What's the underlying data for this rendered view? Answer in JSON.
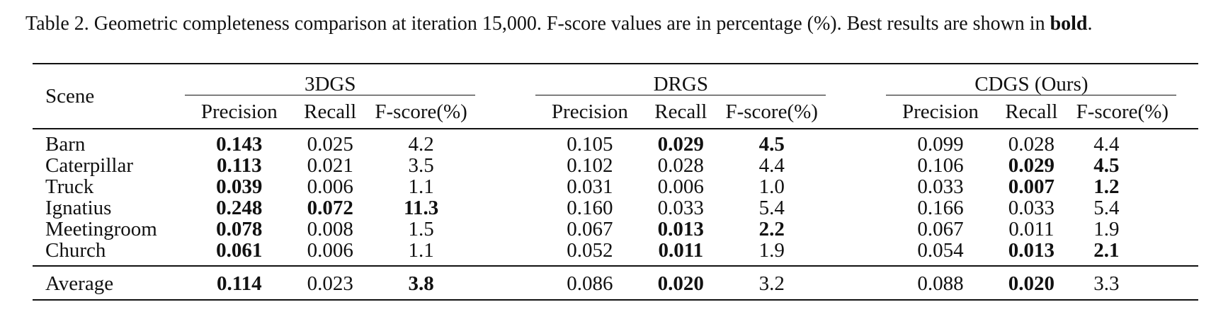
{
  "caption": {
    "prefix": "Table 2. Geometric completeness comparison at iteration 15,000. F-score values are in percentage (%). Best results are shown in ",
    "bold_word": "bold",
    "suffix": "."
  },
  "header": {
    "scene": "Scene",
    "groups": [
      "3DGS",
      "DRGS",
      "CDGS (Ours)"
    ],
    "subcols": [
      "Precision",
      "Recall",
      "F-score(%)"
    ]
  },
  "rows": [
    {
      "scene": "Barn",
      "v": [
        "0.143",
        "0.025",
        "4.2",
        "0.105",
        "0.029",
        "4.5",
        "0.099",
        "0.028",
        "4.4"
      ],
      "bold": [
        0,
        4,
        5
      ]
    },
    {
      "scene": "Caterpillar",
      "v": [
        "0.113",
        "0.021",
        "3.5",
        "0.102",
        "0.028",
        "4.4",
        "0.106",
        "0.029",
        "4.5"
      ],
      "bold": [
        0,
        7,
        8
      ]
    },
    {
      "scene": "Truck",
      "v": [
        "0.039",
        "0.006",
        "1.1",
        "0.031",
        "0.006",
        "1.0",
        "0.033",
        "0.007",
        "1.2"
      ],
      "bold": [
        0,
        7,
        8
      ]
    },
    {
      "scene": "Ignatius",
      "v": [
        "0.248",
        "0.072",
        "11.3",
        "0.160",
        "0.033",
        "5.4",
        "0.166",
        "0.033",
        "5.4"
      ],
      "bold": [
        0,
        1,
        2
      ]
    },
    {
      "scene": "Meetingroom",
      "v": [
        "0.078",
        "0.008",
        "1.5",
        "0.067",
        "0.013",
        "2.2",
        "0.067",
        "0.011",
        "1.9"
      ],
      "bold": [
        0,
        4,
        5
      ]
    },
    {
      "scene": "Church",
      "v": [
        "0.061",
        "0.006",
        "1.1",
        "0.052",
        "0.011",
        "1.9",
        "0.054",
        "0.013",
        "2.1"
      ],
      "bold": [
        0,
        4,
        7,
        8
      ]
    }
  ],
  "average": {
    "scene": "Average",
    "v": [
      "0.114",
      "0.023",
      "3.8",
      "0.086",
      "0.020",
      "3.2",
      "0.088",
      "0.020",
      "3.3"
    ],
    "bold": [
      0,
      2,
      4,
      7
    ]
  }
}
